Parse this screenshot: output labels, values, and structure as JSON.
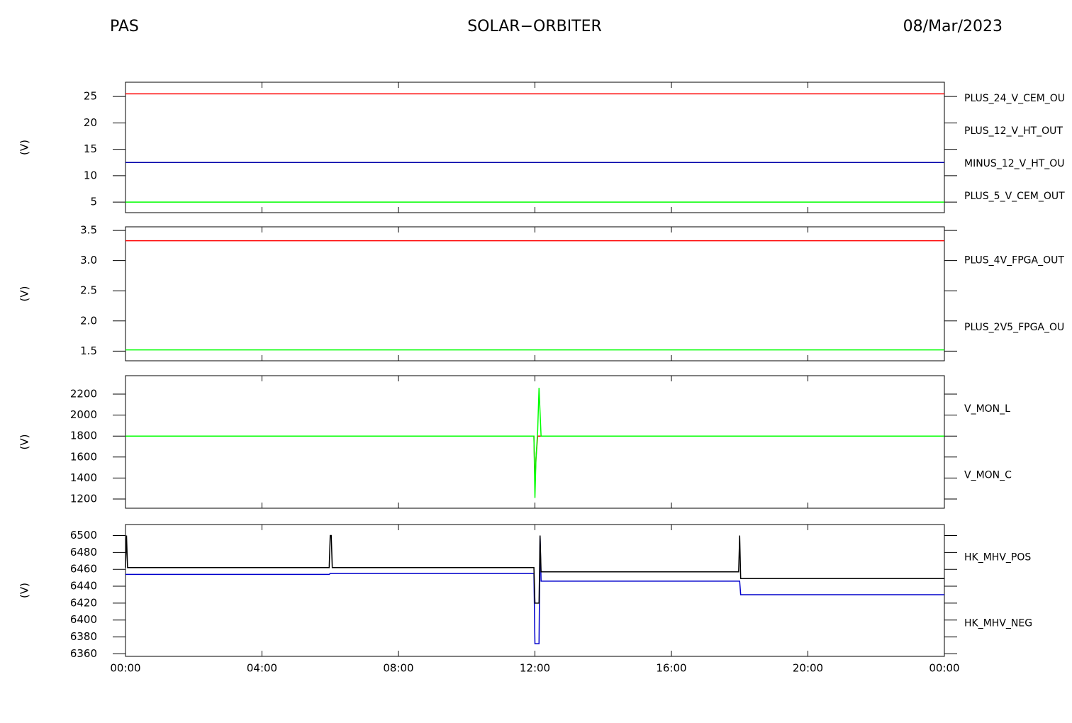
{
  "header": {
    "left": "PAS",
    "center": "SOLAR−ORBITER",
    "right": "08/Mar/2023"
  },
  "chart_data": [
    {
      "type": "line",
      "ylabel": "(V)",
      "x": [
        0,
        24
      ],
      "xlim": [
        0,
        24
      ],
      "ylim": [
        3,
        27.7
      ],
      "yticks": [
        5,
        10,
        15,
        20,
        25
      ],
      "series": [
        {
          "name": "PLUS_24_V_CEM_OU",
          "color": "#ff0000",
          "values": [
            25.5,
            25.5
          ]
        },
        {
          "name": "PLUS_5_V_CEM_OUT",
          "color": "#00ff00",
          "values": [
            5.0,
            5.0
          ]
        },
        {
          "name": "MINUS_12_V_HT_OU",
          "color": "#000000",
          "values": [
            12.5,
            12.5
          ]
        },
        {
          "name": "PLUS_12_V_HT_OUT",
          "color": "#0000aa",
          "values": [
            12.5,
            12.5
          ]
        }
      ]
    },
    {
      "type": "line",
      "ylabel": "(V)",
      "x": [
        0,
        24
      ],
      "xlim": [
        0,
        24
      ],
      "ylim": [
        1.34,
        3.56
      ],
      "yticks": [
        1.5,
        {
          "value": 2,
          "label": "2.0"
        },
        2.5,
        {
          "value": 3,
          "label": "3.0"
        },
        3.5
      ],
      "series": [
        {
          "name": "PLUS_4V_FPGA_OUT",
          "color": "#ff0000",
          "values": [
            3.33,
            3.33
          ]
        },
        {
          "name": "PLUS_2V5_FPGA_OU",
          "color": "#00ff00",
          "values": [
            1.52,
            1.52
          ]
        }
      ]
    },
    {
      "type": "line",
      "ylabel": "(V)",
      "x": [
        0,
        11.97,
        12.0,
        12.03,
        12.08,
        12.12,
        12.18,
        24
      ],
      "xlim": [
        0,
        24
      ],
      "ylim": [
        1112,
        2376
      ],
      "yticks": [
        1200,
        1400,
        1600,
        1800,
        2000,
        2200
      ],
      "series": [
        {
          "name": "V_MON_C",
          "color": "#ff0000",
          "values": [
            1800,
            1800,
            1350,
            1580,
            1800,
            1800,
            1800,
            1800
          ]
        },
        {
          "name": "V_MON_L",
          "color": "#00ff00",
          "values": [
            1800,
            1800,
            1210,
            1580,
            1850,
            2260,
            1800,
            1800
          ]
        }
      ]
    },
    {
      "type": "line",
      "ylabel": "(V)",
      "x": [
        0,
        0.03,
        0.06,
        5.97,
        6.0,
        6.03,
        6.06,
        11.97,
        12.0,
        12.03,
        12.12,
        12.15,
        12.18,
        17.97,
        18.0,
        18.03,
        24
      ],
      "xlim": [
        0,
        24
      ],
      "xticks": [
        {
          "value": 0,
          "label": "00:00"
        },
        {
          "value": 4,
          "label": "04:00"
        },
        {
          "value": 8,
          "label": "08:00"
        },
        {
          "value": 12,
          "label": "12:00"
        },
        {
          "value": 16,
          "label": "16:00"
        },
        {
          "value": 20,
          "label": "20:00"
        },
        {
          "value": 24,
          "label": "00:00"
        }
      ],
      "ylim": [
        6357,
        6513
      ],
      "yticks": [
        6360,
        6380,
        6400,
        6420,
        6440,
        6460,
        6480,
        6500
      ],
      "series": [
        {
          "name": "HK_MHV_NEG",
          "color": "#0000cc",
          "values": [
            6454,
            6454,
            6454,
            6454,
            6455,
            6455,
            6455,
            6455,
            6372,
            6372,
            6372,
            6500,
            6446,
            6446,
            6446,
            6430,
            6430
          ]
        },
        {
          "name": "HK_MHV_POS",
          "color": "#000000",
          "values": [
            6462,
            6500,
            6462,
            6462,
            6500,
            6500,
            6462,
            6462,
            6420,
            6420,
            6420,
            6500,
            6457,
            6457,
            6500,
            6449,
            6449
          ]
        }
      ]
    }
  ]
}
